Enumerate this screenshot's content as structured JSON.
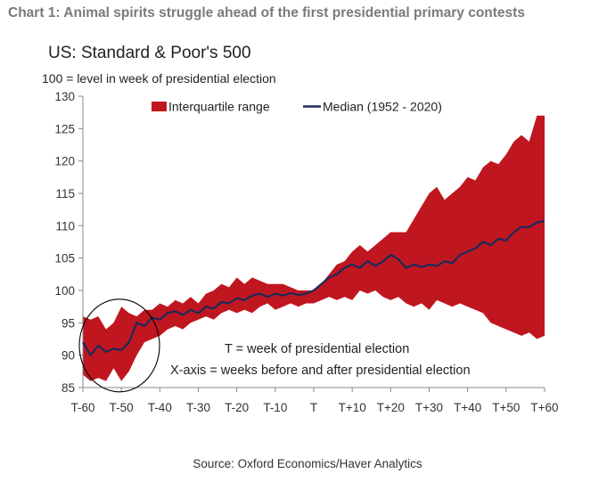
{
  "page_title": "Chart 1: Animal spirits struggle ahead of the first presidential primary contests",
  "source": "Source: Oxford Economics/Haver Analytics",
  "colors": {
    "band": "#c0161f",
    "median": "#1b2a5c",
    "axis": "#888888",
    "circle": "#000000"
  },
  "chart_data": {
    "type": "area",
    "title": "US: Standard & Poor's 500",
    "ylabel": "100 = level in week of presidential election",
    "xlabel": "",
    "xlim": [
      -60,
      60
    ],
    "ylim": [
      85,
      130
    ],
    "x_ticks": [
      -60,
      -50,
      -40,
      -30,
      -20,
      -10,
      0,
      10,
      20,
      30,
      40,
      50,
      60
    ],
    "x_tick_labels": [
      "T-60",
      "T-50",
      "T-40",
      "T-30",
      "T-20",
      "T-10",
      "T",
      "T+10",
      "T+20",
      "T+30",
      "T+40",
      "T+50",
      "T+60"
    ],
    "y_ticks": [
      85,
      90,
      95,
      100,
      105,
      110,
      115,
      120,
      125,
      130
    ],
    "y_tick_labels": [
      "85",
      "90",
      "95",
      "100",
      "105",
      "110",
      "115",
      "120",
      "125",
      "130"
    ],
    "legend": {
      "placement": "top-right",
      "band_label": "Interquartile range",
      "median_label": "Median (1952 - 2020)"
    },
    "series": [
      {
        "name": "Interquartile range",
        "kind": "band",
        "x": [
          -60,
          -58,
          -56,
          -54,
          -52,
          -50,
          -48,
          -46,
          -44,
          -42,
          -40,
          -38,
          -36,
          -34,
          -32,
          -30,
          -28,
          -26,
          -24,
          -22,
          -20,
          -18,
          -16,
          -14,
          -12,
          -10,
          -8,
          -6,
          -4,
          -2,
          0,
          2,
          4,
          6,
          8,
          10,
          12,
          14,
          16,
          18,
          20,
          22,
          24,
          26,
          28,
          30,
          32,
          34,
          36,
          38,
          40,
          42,
          44,
          46,
          48,
          50,
          52,
          54,
          56,
          58,
          60
        ],
        "upper": [
          96,
          95.5,
          96,
          94,
          95,
          97.5,
          96.5,
          96,
          97,
          97,
          98,
          97.5,
          98.5,
          98,
          99,
          98,
          99.5,
          100,
          101,
          100.5,
          102,
          101,
          102,
          101.5,
          101,
          101,
          101,
          100.5,
          100,
          100,
          100,
          101,
          102.5,
          104,
          104.5,
          106,
          107,
          106,
          107,
          108,
          109,
          109,
          109,
          111,
          113,
          115,
          116,
          114,
          115,
          116,
          117.5,
          117,
          119,
          120,
          119.5,
          121,
          123,
          124,
          123,
          127,
          127
        ],
        "lower": [
          87,
          86,
          86.5,
          86,
          88,
          86,
          87.5,
          90,
          92,
          92.5,
          93,
          94,
          94.5,
          94,
          95,
          95.5,
          96,
          95.5,
          96.5,
          97,
          96.5,
          97,
          96.5,
          97.5,
          98,
          97,
          97.5,
          98,
          97.5,
          98,
          98,
          98.5,
          99,
          98.5,
          99,
          98.5,
          100,
          99.5,
          100,
          99,
          98.5,
          99,
          98,
          97.5,
          98,
          97,
          98.5,
          98,
          97.5,
          98,
          97.5,
          97,
          96.5,
          95,
          94.5,
          94,
          93.5,
          93,
          93.5,
          92.5,
          93
        ]
      },
      {
        "name": "Median (1952 - 2020)",
        "kind": "line",
        "x": [
          -60,
          -58,
          -56,
          -54,
          -52,
          -50,
          -48,
          -46,
          -44,
          -42,
          -40,
          -38,
          -36,
          -34,
          -32,
          -30,
          -28,
          -26,
          -24,
          -22,
          -20,
          -18,
          -16,
          -14,
          -12,
          -10,
          -8,
          -6,
          -4,
          -2,
          0,
          2,
          4,
          6,
          8,
          10,
          12,
          14,
          16,
          18,
          20,
          22,
          24,
          26,
          28,
          30,
          32,
          34,
          36,
          38,
          40,
          42,
          44,
          46,
          48,
          50,
          52,
          54,
          56,
          58,
          60
        ],
        "values": [
          92,
          90,
          91.5,
          90.5,
          91,
          90.8,
          92,
          95,
          94.5,
          95.8,
          95.5,
          96.5,
          96.8,
          96.2,
          97,
          96.5,
          97.5,
          97.2,
          98.2,
          98,
          98.8,
          98.5,
          99.2,
          99.5,
          99,
          99.5,
          99.2,
          99.6,
          99.3,
          99.5,
          100,
          101,
          102,
          102.5,
          103.5,
          104,
          103.5,
          104.5,
          103.8,
          104.5,
          105.5,
          104.8,
          103.5,
          104,
          103.6,
          104,
          103.8,
          104.5,
          104.2,
          105.5,
          106,
          106.5,
          107.5,
          107,
          108,
          107.7,
          109,
          109.8,
          109.8,
          110.5,
          110.7
        ]
      }
    ],
    "annotations": [
      "T = week of presidential election",
      "X-axis = weeks before and after presidential election"
    ]
  }
}
